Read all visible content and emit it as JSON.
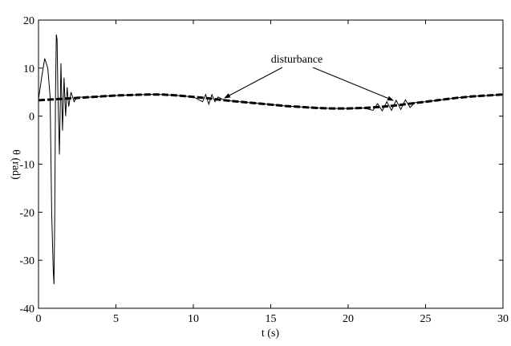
{
  "chart_data": {
    "type": "line",
    "xlabel": "t (s)",
    "ylabel": "θ (rad)",
    "annotation": "disturbance",
    "xlim": [
      0,
      30
    ],
    "xticks": [
      0,
      5,
      10,
      15,
      20,
      25,
      30
    ],
    "ylim": [
      -40,
      20
    ],
    "yticks": [
      -40,
      -30,
      -20,
      -10,
      0,
      10,
      20
    ],
    "series": [
      {
        "color": "#000000",
        "line_style": "dashed",
        "x": [
          0,
          1,
          2,
          3,
          4,
          5,
          6,
          7,
          8,
          9,
          10,
          11,
          12,
          13,
          14,
          15,
          16,
          17,
          18,
          19,
          20,
          21,
          22,
          23,
          24,
          25,
          26,
          27,
          28,
          29,
          30
        ],
        "values": [
          3.3,
          3.5,
          3.7,
          3.9,
          4.1,
          4.3,
          4.4,
          4.5,
          4.5,
          4.3,
          4.0,
          3.7,
          3.3,
          3.0,
          2.7,
          2.4,
          2.1,
          1.9,
          1.7,
          1.6,
          1.6,
          1.7,
          1.9,
          2.2,
          2.6,
          3.0,
          3.4,
          3.8,
          4.1,
          4.3,
          4.5
        ]
      },
      {
        "color": "#000000",
        "line_style": "solid",
        "x": [
          0,
          0.2,
          0.4,
          0.6,
          0.75,
          0.85,
          0.95,
          1.0,
          1.05,
          1.1,
          1.15,
          1.2,
          1.25,
          1.35,
          1.45,
          1.55,
          1.65,
          1.75,
          1.85,
          1.95,
          2.1,
          2.3,
          2.5,
          3,
          4,
          5,
          6,
          7,
          8,
          9,
          10,
          10.6,
          10.8,
          11,
          11.2,
          11.4,
          11.6,
          12,
          13,
          14,
          15,
          16,
          17,
          18,
          19,
          20,
          21,
          21.6,
          21.9,
          22.2,
          22.5,
          22.8,
          23.1,
          23.4,
          23.7,
          24,
          24.3,
          25,
          26,
          27,
          28,
          29,
          30
        ],
        "values": [
          3.5,
          8,
          12,
          10,
          4,
          -20,
          -32,
          -35,
          -20,
          5,
          17,
          16,
          5,
          -8,
          11,
          -3,
          8,
          0,
          6,
          2,
          5,
          3,
          4,
          3.9,
          4.1,
          4.3,
          4.4,
          4.5,
          4.5,
          4.3,
          4.0,
          3,
          4.5,
          2.5,
          4.5,
          3,
          4,
          3.3,
          3.0,
          2.7,
          2.4,
          2.1,
          1.9,
          1.7,
          1.6,
          1.6,
          1.7,
          1.2,
          2.6,
          1.1,
          3.0,
          1.2,
          3.3,
          1.4,
          3.4,
          1.8,
          2.8,
          3.0,
          3.4,
          3.8,
          4.1,
          4.3,
          4.5
        ]
      }
    ]
  }
}
